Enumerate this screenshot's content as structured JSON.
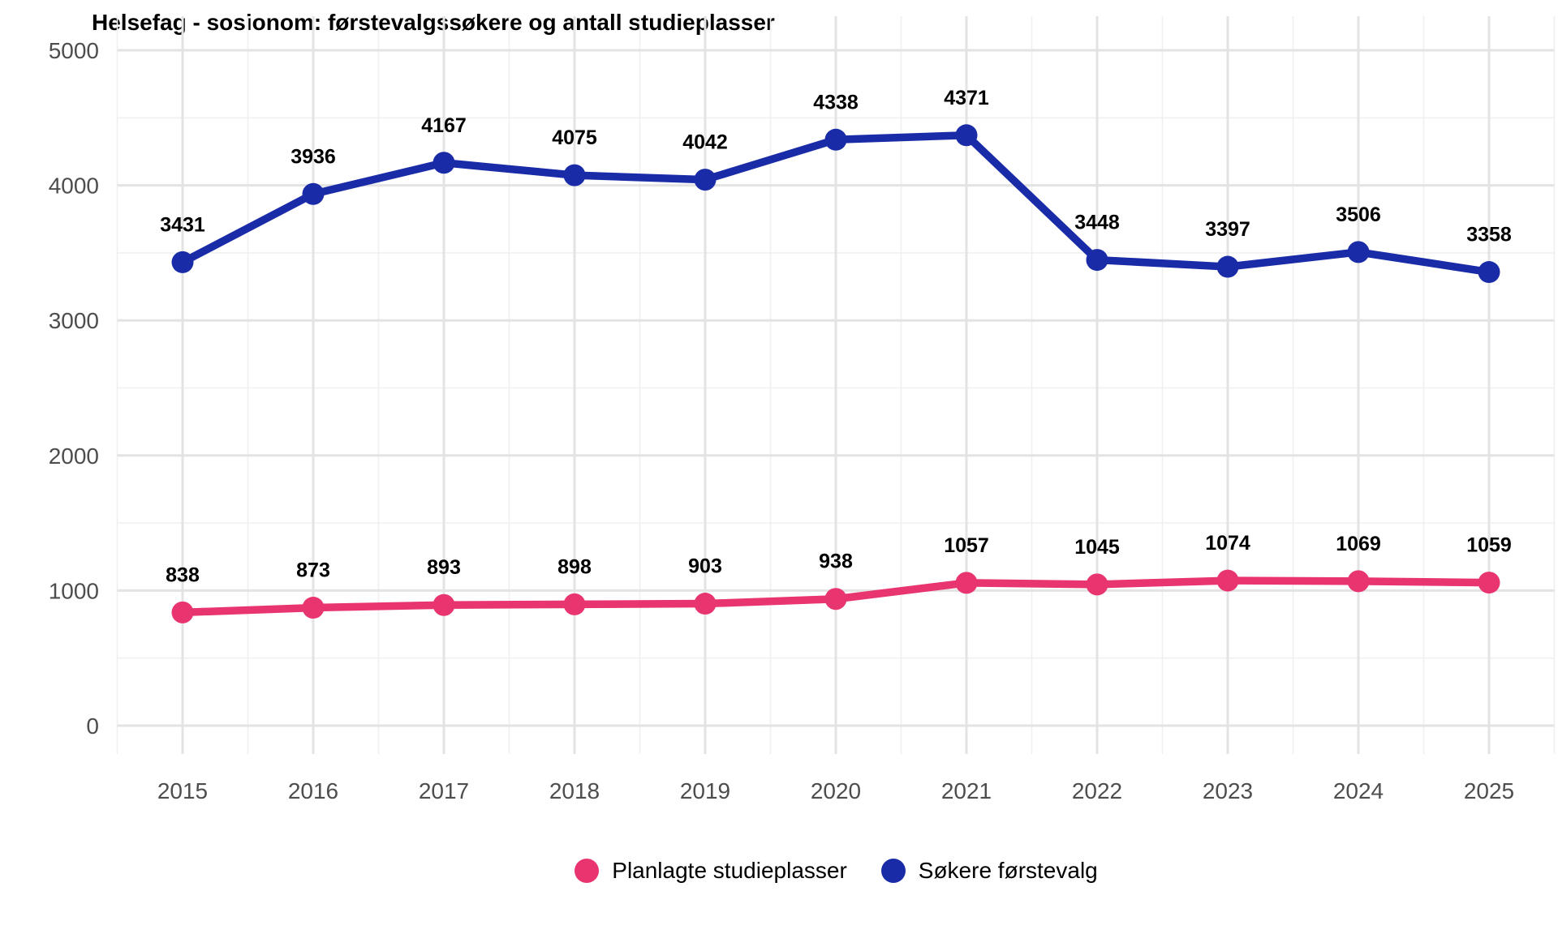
{
  "chart_data": {
    "type": "line",
    "title": "Helsefag - sosionom: førstevalgssøkere og antall studieplasser",
    "x": [
      2015,
      2016,
      2017,
      2018,
      2019,
      2020,
      2021,
      2022,
      2023,
      2024,
      2025
    ],
    "series": [
      {
        "name": "Planlagte studieplasser",
        "color": "#e8356f",
        "values": [
          838,
          873,
          893,
          898,
          903,
          938,
          1057,
          1045,
          1074,
          1069,
          1059
        ]
      },
      {
        "name": "Søkere førstevalg",
        "color": "#1a2ba8",
        "values": [
          3431,
          3936,
          4167,
          4075,
          4042,
          4338,
          4371,
          3448,
          3397,
          3506,
          3358
        ]
      }
    ],
    "ylim": [
      0,
      5000
    ],
    "yticks": [
      0,
      1000,
      2000,
      3000,
      4000,
      5000
    ],
    "yticks_minor": [
      500,
      1500,
      2500,
      3500,
      4500
    ],
    "grid": "on",
    "data_labels": true,
    "legend_position": "bottom"
  },
  "axes": {
    "x_tick_labels": [
      "2015",
      "2016",
      "2017",
      "2018",
      "2019",
      "2020",
      "2021",
      "2022",
      "2023",
      "2024",
      "2025"
    ],
    "y_tick_labels": [
      "0",
      "1000",
      "2000",
      "3000",
      "4000",
      "5000"
    ]
  },
  "legend": {
    "items": [
      {
        "label": "Planlagte studieplasser",
        "color": "#e8356f"
      },
      {
        "label": "Søkere førstevalg",
        "color": "#1a2ba8"
      }
    ]
  },
  "colors": {
    "background": "#ffffff",
    "grid_major": "#e3e3e3",
    "grid_minor": "#f0f0f0",
    "axis_text": "#4d4d4d",
    "title_text": "#000000",
    "data_label_text": "#000000"
  }
}
